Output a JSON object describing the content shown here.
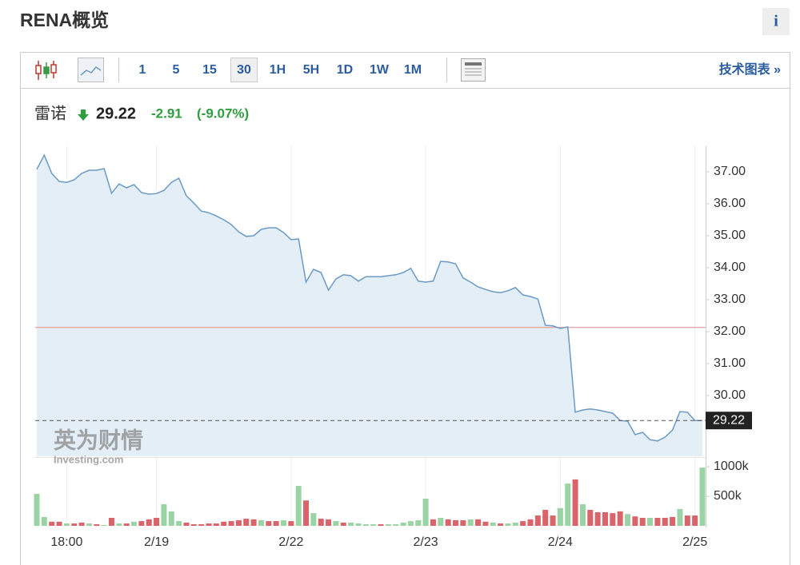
{
  "header": {
    "title": "RENA概览",
    "info": "i"
  },
  "toolbar": {
    "intervals": [
      "1",
      "5",
      "15",
      "30",
      "1H",
      "5H",
      "1D",
      "1W",
      "1M"
    ],
    "selected": "30",
    "link": "技术图表 »"
  },
  "quote": {
    "name": "雷诺",
    "price": "29.22",
    "change": "-2.91",
    "change_percent": "(-9.07%)"
  },
  "watermark": {
    "brand": "英为财情",
    "site": "Investing.com"
  },
  "chart_data": {
    "type": "line",
    "line_color": "#6b9ac4",
    "area_color": "#e4eef7",
    "categories": [
      null,
      null,
      null,
      null,
      "18:00",
      null,
      null,
      null,
      null,
      null,
      null,
      null,
      null,
      null,
      null,
      null,
      "2/19",
      null,
      null,
      null,
      null,
      null,
      null,
      null,
      null,
      null,
      null,
      null,
      null,
      null,
      null,
      null,
      null,
      null,
      "2/22",
      null,
      null,
      null,
      null,
      null,
      null,
      null,
      null,
      null,
      null,
      null,
      null,
      null,
      null,
      null,
      null,
      null,
      "2/23",
      null,
      null,
      null,
      null,
      null,
      null,
      null,
      null,
      null,
      null,
      null,
      null,
      null,
      null,
      null,
      null,
      null,
      "2/24",
      null,
      null,
      null,
      null,
      null,
      null,
      null,
      null,
      null,
      null,
      null,
      null,
      null,
      null,
      null,
      null,
      null,
      "2/25",
      null
    ],
    "values": [
      37.08,
      37.52,
      36.95,
      36.7,
      36.67,
      36.75,
      36.95,
      37.05,
      37.05,
      37.1,
      36.33,
      36.62,
      36.5,
      36.6,
      36.35,
      36.3,
      36.32,
      36.42,
      36.67,
      36.8,
      36.25,
      36.02,
      35.77,
      35.72,
      35.62,
      35.5,
      35.35,
      35.12,
      34.98,
      35.0,
      35.2,
      35.25,
      35.25,
      35.1,
      34.88,
      34.9,
      33.55,
      33.95,
      33.85,
      33.3,
      33.65,
      33.78,
      33.75,
      33.58,
      33.72,
      33.72,
      33.72,
      33.75,
      33.78,
      33.85,
      33.98,
      33.58,
      33.55,
      33.58,
      34.2,
      34.18,
      34.12,
      33.68,
      33.55,
      33.4,
      33.32,
      33.25,
      33.22,
      33.28,
      33.38,
      33.15,
      33.1,
      33.02,
      32.2,
      32.18,
      32.1,
      32.15,
      29.48,
      29.55,
      29.58,
      29.55,
      29.5,
      29.45,
      29.22,
      29.2,
      28.78,
      28.85,
      28.62,
      28.58,
      28.7,
      28.92,
      29.5,
      29.48,
      29.22,
      29.22
    ],
    "ylim": [
      28.1,
      37.8
    ],
    "yticks": [
      {
        "value": 30,
        "label": "30.00"
      },
      {
        "value": 31,
        "label": "31.00"
      },
      {
        "value": 32,
        "label": "32.00"
      },
      {
        "value": 33,
        "label": "33.00"
      },
      {
        "value": 34,
        "label": "34.00"
      },
      {
        "value": 35,
        "label": "35.00"
      },
      {
        "value": 36,
        "label": "36.00"
      },
      {
        "value": 37,
        "label": "37.00"
      }
    ],
    "previous_close": 32.13,
    "previous_close_color": "#e38a8a",
    "last_price": 29.22,
    "volume": {
      "up_color": "#9ad3a4",
      "down_color": "#d9646a",
      "ylim": [
        0,
        1095000
      ],
      "yticks": [
        {
          "value": 500000,
          "label": "500k"
        },
        {
          "value": 1000000,
          "label": "1000k"
        }
      ],
      "values": [
        540000,
        150000,
        70000,
        70000,
        40000,
        40000,
        55000,
        40000,
        27000,
        14000,
        135000,
        40000,
        40000,
        70000,
        80000,
        110000,
        135000,
        365000,
        245000,
        80000,
        55000,
        27000,
        27000,
        40000,
        40000,
        70000,
        80000,
        95000,
        120000,
        110000,
        95000,
        80000,
        80000,
        95000,
        80000,
        675000,
        430000,
        215000,
        120000,
        110000,
        80000,
        55000,
        55000,
        40000,
        27000,
        27000,
        27000,
        27000,
        27000,
        55000,
        80000,
        95000,
        460000,
        110000,
        135000,
        110000,
        95000,
        95000,
        110000,
        110000,
        70000,
        55000,
        40000,
        40000,
        55000,
        80000,
        110000,
        175000,
        270000,
        175000,
        300000,
        715000,
        785000,
        365000,
        270000,
        230000,
        230000,
        215000,
        245000,
        200000,
        160000,
        135000,
        135000,
        135000,
        135000,
        150000,
        285000,
        175000,
        175000,
        985000
      ],
      "up": [
        true,
        true,
        false,
        false,
        true,
        false,
        false,
        true,
        false,
        true,
        false,
        true,
        false,
        true,
        false,
        false,
        false,
        true,
        true,
        true,
        false,
        false,
        false,
        false,
        false,
        false,
        false,
        false,
        false,
        false,
        true,
        false,
        false,
        true,
        false,
        true,
        false,
        true,
        false,
        false,
        true,
        false,
        true,
        true,
        true,
        true,
        false,
        true,
        true,
        true,
        true,
        true,
        true,
        false,
        true,
        false,
        false,
        false,
        true,
        false,
        false,
        true,
        false,
        true,
        true,
        false,
        false,
        false,
        false,
        false,
        true,
        true,
        false,
        true,
        false,
        false,
        false,
        false,
        false,
        true,
        false,
        false,
        true,
        false,
        false,
        false,
        true,
        false,
        false,
        true
      ]
    }
  }
}
